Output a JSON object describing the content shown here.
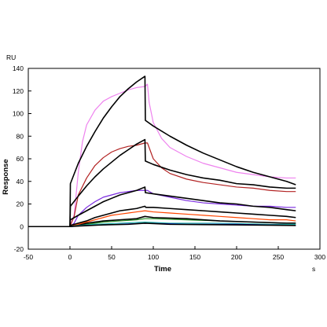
{
  "chart_data": {
    "type": "line",
    "title": "",
    "xlabel": "Time",
    "ylabel": "Response",
    "x_unit": "s",
    "y_unit": "RU",
    "xlim": [
      -50,
      300
    ],
    "ylim": [
      -20,
      140
    ],
    "x_ticks": [
      -50,
      0,
      50,
      100,
      150,
      200,
      250,
      300
    ],
    "y_ticks": [
      -20,
      0,
      20,
      40,
      60,
      80,
      100,
      120,
      140
    ],
    "grid": false,
    "legend": "none",
    "series": [
      {
        "color": "#ee82ee",
        "points": [
          [
            -50,
            0
          ],
          [
            0,
            0
          ],
          [
            5,
            10
          ],
          [
            10,
            48
          ],
          [
            15,
            75
          ],
          [
            20,
            90
          ],
          [
            30,
            103
          ],
          [
            40,
            111
          ],
          [
            50,
            115
          ],
          [
            60,
            118
          ],
          [
            70,
            121
          ],
          [
            80,
            123
          ],
          [
            90,
            124
          ],
          [
            93,
            126
          ],
          [
            95,
            110
          ],
          [
            100,
            92
          ],
          [
            110,
            78
          ],
          [
            120,
            70
          ],
          [
            140,
            62
          ],
          [
            160,
            56
          ],
          [
            180,
            52
          ],
          [
            200,
            48
          ],
          [
            220,
            46
          ],
          [
            240,
            44
          ],
          [
            260,
            43
          ],
          [
            271,
            43
          ]
        ]
      },
      {
        "color": "#000000",
        "points": [
          [
            -50,
            0
          ],
          [
            0,
            0
          ],
          [
            0.5,
            38
          ],
          [
            10,
            56
          ],
          [
            20,
            71
          ],
          [
            30,
            84
          ],
          [
            40,
            96
          ],
          [
            50,
            106
          ],
          [
            60,
            115
          ],
          [
            70,
            122
          ],
          [
            80,
            128
          ],
          [
            90,
            133
          ],
          [
            90.5,
            94
          ],
          [
            100,
            89
          ],
          [
            120,
            80
          ],
          [
            140,
            72
          ],
          [
            160,
            65
          ],
          [
            180,
            59
          ],
          [
            200,
            53
          ],
          [
            220,
            48
          ],
          [
            240,
            44
          ],
          [
            260,
            40
          ],
          [
            271,
            37
          ]
        ]
      },
      {
        "color": "#b22222",
        "points": [
          [
            -50,
            0
          ],
          [
            0,
            0
          ],
          [
            5,
            9
          ],
          [
            10,
            28
          ],
          [
            20,
            43
          ],
          [
            30,
            54
          ],
          [
            40,
            61
          ],
          [
            50,
            66
          ],
          [
            60,
            69
          ],
          [
            70,
            71
          ],
          [
            80,
            72
          ],
          [
            90,
            74
          ],
          [
            93,
            74
          ],
          [
            95,
            70
          ],
          [
            100,
            60
          ],
          [
            110,
            52
          ],
          [
            120,
            47
          ],
          [
            140,
            42
          ],
          [
            160,
            39
          ],
          [
            180,
            37
          ],
          [
            200,
            35
          ],
          [
            220,
            34
          ],
          [
            240,
            32
          ],
          [
            260,
            31
          ],
          [
            271,
            31
          ]
        ]
      },
      {
        "color": "#000000",
        "points": [
          [
            -50,
            0
          ],
          [
            0,
            0
          ],
          [
            0.5,
            18
          ],
          [
            10,
            27
          ],
          [
            20,
            36
          ],
          [
            30,
            44
          ],
          [
            40,
            51
          ],
          [
            50,
            57
          ],
          [
            60,
            63
          ],
          [
            70,
            68
          ],
          [
            80,
            73
          ],
          [
            90,
            77
          ],
          [
            90.5,
            58
          ],
          [
            100,
            55
          ],
          [
            120,
            50
          ],
          [
            140,
            46
          ],
          [
            160,
            43
          ],
          [
            180,
            41
          ],
          [
            200,
            38
          ],
          [
            220,
            37
          ],
          [
            240,
            35
          ],
          [
            260,
            34
          ],
          [
            271,
            34
          ]
        ]
      },
      {
        "color": "#7b2be0",
        "points": [
          [
            -50,
            0
          ],
          [
            0,
            0
          ],
          [
            5,
            3
          ],
          [
            10,
            10
          ],
          [
            20,
            17
          ],
          [
            30,
            22
          ],
          [
            40,
            26
          ],
          [
            50,
            28
          ],
          [
            60,
            30
          ],
          [
            70,
            31
          ],
          [
            80,
            32
          ],
          [
            90,
            32
          ],
          [
            93,
            32
          ],
          [
            100,
            29
          ],
          [
            120,
            26
          ],
          [
            140,
            23
          ],
          [
            160,
            21
          ],
          [
            180,
            20
          ],
          [
            200,
            19
          ],
          [
            220,
            18
          ],
          [
            240,
            18
          ],
          [
            260,
            17
          ],
          [
            271,
            17
          ]
        ]
      },
      {
        "color": "#000000",
        "points": [
          [
            -50,
            0
          ],
          [
            0,
            0
          ],
          [
            0.5,
            6
          ],
          [
            10,
            10
          ],
          [
            20,
            14
          ],
          [
            30,
            18
          ],
          [
            40,
            22
          ],
          [
            50,
            25
          ],
          [
            60,
            28
          ],
          [
            70,
            30
          ],
          [
            80,
            32
          ],
          [
            90,
            35
          ],
          [
            90.5,
            30
          ],
          [
            100,
            29
          ],
          [
            120,
            27
          ],
          [
            140,
            25
          ],
          [
            160,
            23
          ],
          [
            180,
            21
          ],
          [
            200,
            20
          ],
          [
            220,
            18
          ],
          [
            240,
            17
          ],
          [
            260,
            15
          ],
          [
            271,
            14
          ]
        ]
      },
      {
        "color": "#000000",
        "points": [
          [
            -50,
            0
          ],
          [
            0,
            0
          ],
          [
            0.5,
            1
          ],
          [
            10,
            3
          ],
          [
            20,
            5
          ],
          [
            30,
            8
          ],
          [
            40,
            10
          ],
          [
            50,
            12
          ],
          [
            60,
            14
          ],
          [
            70,
            15
          ],
          [
            80,
            16
          ],
          [
            90,
            18
          ],
          [
            91,
            17
          ],
          [
            100,
            17
          ],
          [
            120,
            16
          ],
          [
            140,
            15
          ],
          [
            160,
            14
          ],
          [
            180,
            13
          ],
          [
            200,
            12
          ],
          [
            220,
            11
          ],
          [
            240,
            10
          ],
          [
            260,
            9
          ],
          [
            271,
            8
          ]
        ]
      },
      {
        "color": "#ff4500",
        "points": [
          [
            -50,
            0
          ],
          [
            0,
            0
          ],
          [
            5,
            1
          ],
          [
            10,
            2
          ],
          [
            20,
            4
          ],
          [
            30,
            6
          ],
          [
            40,
            8
          ],
          [
            50,
            10
          ],
          [
            60,
            11
          ],
          [
            70,
            12
          ],
          [
            80,
            13
          ],
          [
            90,
            14
          ],
          [
            100,
            13
          ],
          [
            120,
            12
          ],
          [
            140,
            11
          ],
          [
            160,
            10
          ],
          [
            180,
            9
          ],
          [
            200,
            8
          ],
          [
            220,
            7
          ],
          [
            240,
            6
          ],
          [
            260,
            6
          ],
          [
            271,
            5
          ]
        ]
      },
      {
        "color": "#228b22",
        "points": [
          [
            -50,
            0
          ],
          [
            0,
            0
          ],
          [
            10,
            1
          ],
          [
            20,
            2
          ],
          [
            40,
            4
          ],
          [
            60,
            5
          ],
          [
            80,
            6
          ],
          [
            90,
            7
          ],
          [
            100,
            7
          ],
          [
            140,
            6
          ],
          [
            180,
            5
          ],
          [
            220,
            4
          ],
          [
            260,
            3
          ],
          [
            271,
            3
          ]
        ]
      },
      {
        "color": "#000000",
        "points": [
          [
            -50,
            0
          ],
          [
            0,
            0
          ],
          [
            10,
            1
          ],
          [
            20,
            3
          ],
          [
            40,
            5
          ],
          [
            60,
            6
          ],
          [
            80,
            7
          ],
          [
            90,
            9
          ],
          [
            100,
            8
          ],
          [
            140,
            7
          ],
          [
            180,
            5
          ],
          [
            220,
            4
          ],
          [
            260,
            3
          ],
          [
            271,
            3
          ]
        ]
      },
      {
        "color": "#20b2aa",
        "points": [
          [
            -50,
            0
          ],
          [
            0,
            0
          ],
          [
            10,
            1
          ],
          [
            30,
            2
          ],
          [
            60,
            3
          ],
          [
            90,
            4
          ],
          [
            120,
            3
          ],
          [
            180,
            3
          ],
          [
            240,
            2
          ],
          [
            271,
            2
          ]
        ]
      },
      {
        "color": "#0000cd",
        "points": [
          [
            -50,
            0
          ],
          [
            0,
            0
          ],
          [
            20,
            1
          ],
          [
            60,
            2
          ],
          [
            90,
            3
          ],
          [
            140,
            2
          ],
          [
            200,
            2
          ],
          [
            271,
            1
          ]
        ]
      },
      {
        "color": "#000000",
        "points": [
          [
            -50,
            0
          ],
          [
            0,
            0
          ],
          [
            10,
            0.5
          ],
          [
            40,
            1.5
          ],
          [
            70,
            2
          ],
          [
            90,
            3
          ],
          [
            120,
            2
          ],
          [
            200,
            1.5
          ],
          [
            271,
            1
          ]
        ]
      }
    ]
  }
}
